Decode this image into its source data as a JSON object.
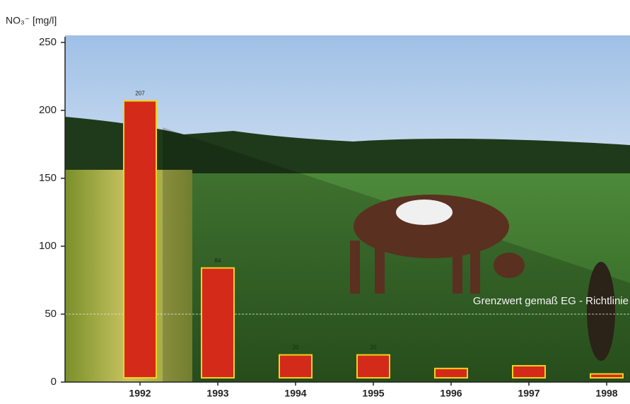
{
  "chart_data": {
    "type": "bar",
    "y_label": "NO₃⁻ [mg/l]",
    "categories": [
      "1992",
      "1993",
      "1994",
      "1995",
      "1996",
      "1997",
      "1998"
    ],
    "values": [
      207,
      84,
      20,
      20,
      10,
      12,
      6
    ],
    "value_labels": [
      "207",
      "84",
      "20",
      "20",
      null,
      null,
      null
    ],
    "color": "#d42a1a",
    "edge_color": "#f2d21e",
    "ylim": [
      0,
      250
    ],
    "yticks": [
      0,
      50,
      100,
      150,
      200,
      250
    ],
    "limit_line": {
      "value": 50,
      "label": "Grenzwert gemaß EG - Richtlinie"
    }
  }
}
